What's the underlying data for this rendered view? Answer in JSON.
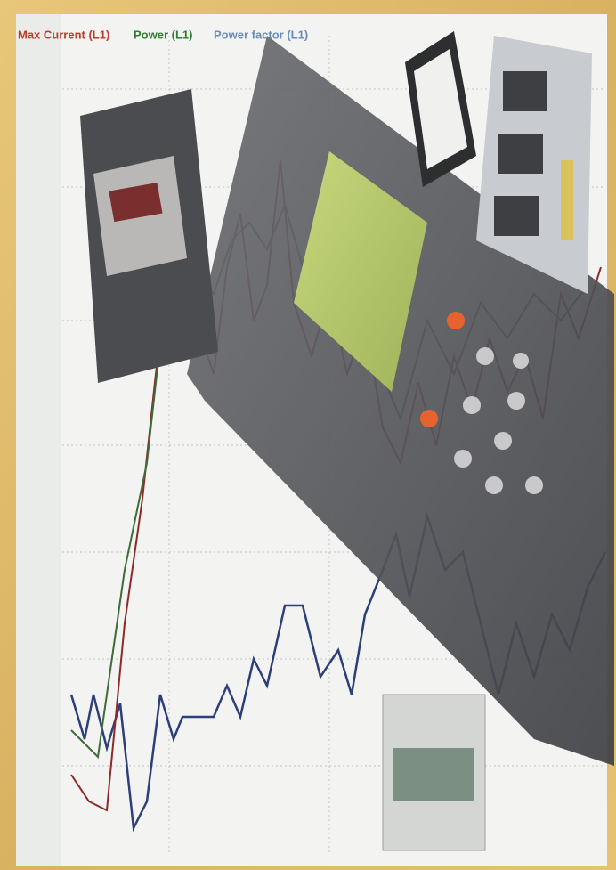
{
  "legend": {
    "series": [
      "Max Current (L1)",
      "Power (L1)",
      "Power factor (L1)"
    ]
  }
}
